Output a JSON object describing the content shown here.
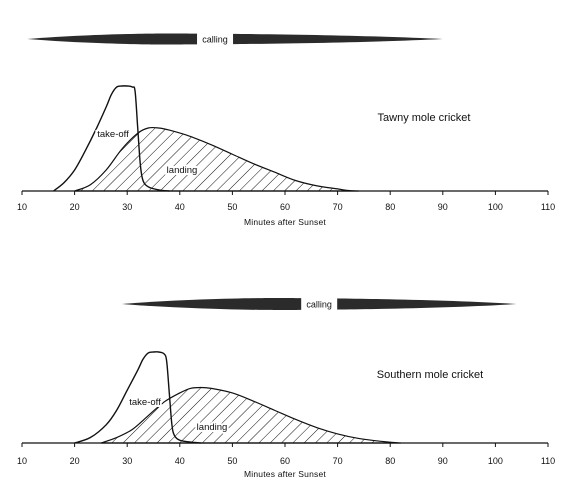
{
  "chart_data": [
    {
      "type": "area",
      "title": "Tawny mole cricket",
      "xlabel": "Minutes after Sunset",
      "xlim": [
        10,
        110
      ],
      "xticks": [
        10,
        20,
        30,
        40,
        50,
        60,
        70,
        80,
        90,
        100,
        110
      ],
      "tick_labels": [
        "10",
        "20",
        "30",
        "40",
        "50",
        "60",
        "70",
        "80",
        "90",
        "100",
        "110"
      ],
      "calling": {
        "label": "calling",
        "start": 11,
        "end": 90,
        "peak": 37
      },
      "series": [
        {
          "name": "take-off",
          "fill": "none",
          "x": [
            16,
            18,
            20,
            22,
            24,
            26,
            27,
            28,
            29,
            30,
            31,
            31.5,
            32,
            32.5,
            33,
            34,
            36,
            38
          ],
          "y": [
            0,
            0.08,
            0.2,
            0.38,
            0.58,
            0.8,
            0.92,
            0.99,
            1.0,
            1.0,
            0.99,
            0.95,
            0.6,
            0.25,
            0.1,
            0.04,
            0.01,
            0
          ]
        },
        {
          "name": "landing",
          "fill": "hatched",
          "x": [
            20,
            23,
            26,
            29,
            32,
            34,
            36,
            38,
            42,
            46,
            50,
            54,
            58,
            62,
            66,
            70,
            72,
            74
          ],
          "y": [
            0,
            0.06,
            0.2,
            0.4,
            0.55,
            0.6,
            0.6,
            0.58,
            0.52,
            0.44,
            0.35,
            0.26,
            0.18,
            0.1,
            0.05,
            0.02,
            0.005,
            0
          ]
        }
      ]
    },
    {
      "type": "area",
      "title": "Southern mole cricket",
      "xlabel": "Minutes after Sunset",
      "xlim": [
        10,
        110
      ],
      "xticks": [
        10,
        20,
        30,
        40,
        50,
        60,
        70,
        80,
        90,
        100,
        110
      ],
      "tick_labels": [
        "10",
        "20",
        "30",
        "40",
        "50",
        "60",
        "70",
        "80",
        "90",
        "100",
        "110"
      ],
      "calling": {
        "label": "calling",
        "start": 29,
        "end": 104,
        "peak": 58
      },
      "series": [
        {
          "name": "take-off",
          "fill": "none",
          "x": [
            20,
            23,
            26,
            28,
            30,
            32,
            33,
            34,
            35,
            36,
            37,
            37.5,
            38,
            38.5,
            39,
            40,
            42,
            44
          ],
          "y": [
            0,
            0.06,
            0.2,
            0.36,
            0.58,
            0.8,
            0.92,
            0.99,
            1.0,
            1.0,
            0.98,
            0.9,
            0.55,
            0.2,
            0.08,
            0.03,
            0.01,
            0
          ]
        },
        {
          "name": "landing",
          "fill": "hatched",
          "x": [
            25,
            28,
            31,
            34,
            37,
            40,
            42,
            44,
            46,
            50,
            54,
            58,
            62,
            66,
            70,
            74,
            78,
            82
          ],
          "y": [
            0,
            0.06,
            0.15,
            0.3,
            0.45,
            0.55,
            0.6,
            0.61,
            0.6,
            0.55,
            0.46,
            0.36,
            0.26,
            0.17,
            0.1,
            0.05,
            0.02,
            0
          ]
        }
      ]
    }
  ]
}
